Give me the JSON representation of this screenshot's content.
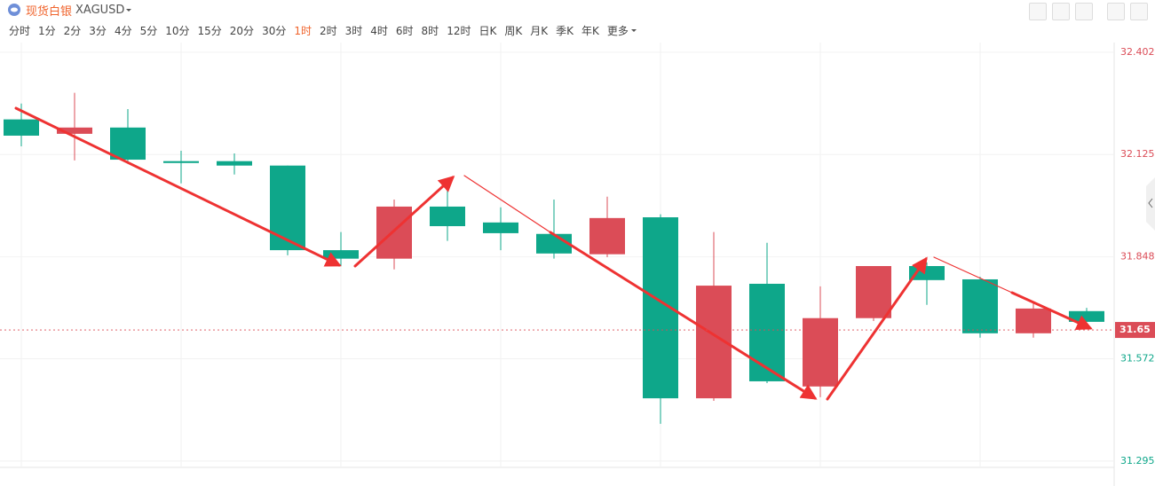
{
  "header": {
    "name": "现货白银",
    "symbol": "XAGUSD"
  },
  "toolbar": {
    "intervals": [
      "分时",
      "1分",
      "2分",
      "3分",
      "4分",
      "5分",
      "10分",
      "15分",
      "20分",
      "30分",
      "1时",
      "2时",
      "3时",
      "4时",
      "6时",
      "8时",
      "12时",
      "日K",
      "周K",
      "月K",
      "季K",
      "年K",
      "更多"
    ],
    "active": 10
  },
  "chart_data": {
    "type": "candlestick",
    "categories": [
      null,
      null,
      null,
      null,
      null,
      null,
      null,
      null,
      null,
      null,
      null,
      null,
      null,
      null,
      null,
      null,
      null,
      null,
      null,
      null,
      null
    ],
    "open": [
      32.22,
      32.181,
      32.198,
      32.107,
      32.107,
      32.095,
      31.866,
      31.843,
      31.984,
      31.941,
      31.91,
      31.855,
      31.955,
      31.465,
      31.775,
      31.497,
      31.682,
      31.823,
      31.787,
      31.641,
      31.701
    ],
    "high": [
      32.263,
      32.292,
      32.248,
      32.135,
      32.128,
      32.095,
      31.915,
      32.003,
      32.027,
      31.982,
      32.003,
      32.011,
      31.963,
      31.915,
      31.886,
      31.768,
      31.823,
      31.833,
      31.794,
      31.727,
      31.71
    ],
    "low": [
      32.147,
      32.109,
      32.107,
      32.047,
      32.071,
      31.852,
      31.823,
      31.814,
      31.891,
      31.866,
      31.843,
      31.847,
      31.396,
      31.458,
      31.506,
      31.468,
      31.674,
      31.718,
      31.629,
      31.629,
      31.672
    ],
    "close": [
      32.176,
      32.198,
      32.111,
      32.102,
      32.095,
      31.866,
      31.843,
      31.984,
      31.931,
      31.912,
      31.857,
      31.953,
      31.465,
      31.77,
      31.511,
      31.682,
      31.823,
      31.785,
      31.641,
      31.708,
      31.672
    ],
    "up_color": "#db4c57",
    "down_color": "#0ea78a",
    "ylim": [
      31.278,
      32.428
    ],
    "yticks": [
      32.402,
      32.125,
      31.848,
      31.572,
      31.295
    ],
    "last_price": 31.65,
    "grid": true
  }
}
